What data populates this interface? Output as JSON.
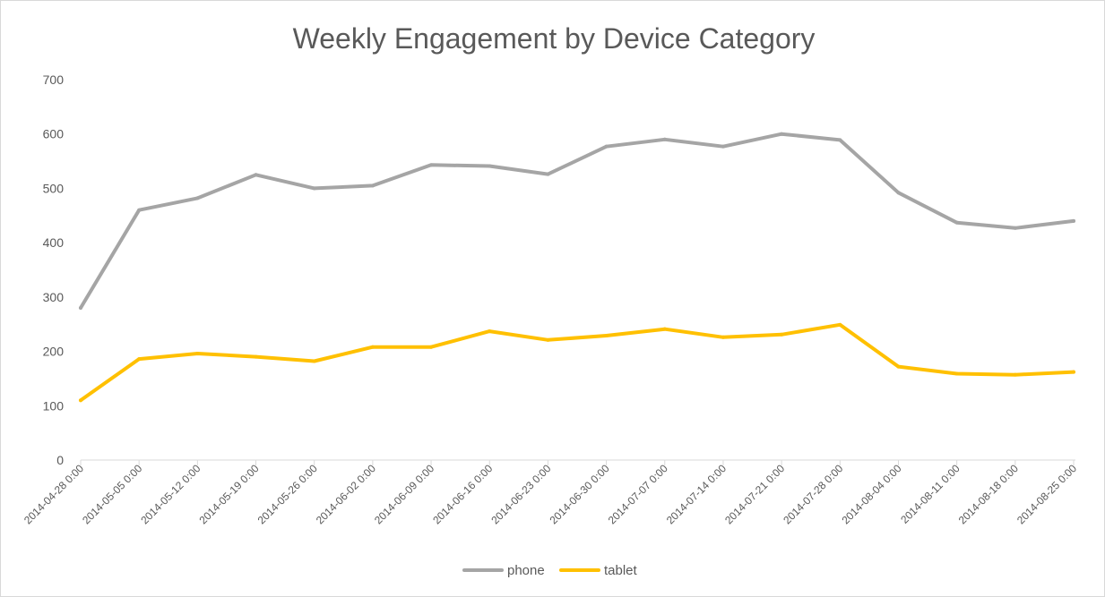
{
  "colors": {
    "phone": "#a5a5a5",
    "tablet": "#ffc000",
    "axis": "#d9d9d9",
    "text": "#595959"
  },
  "chart_data": {
    "type": "line",
    "title": "Weekly Engagement by Device Category",
    "xlabel": "",
    "ylabel": "",
    "ylim": [
      0,
      700
    ],
    "yticks": [
      0,
      100,
      200,
      300,
      400,
      500,
      600,
      700
    ],
    "grid": false,
    "legend_position": "bottom",
    "categories": [
      "2014-04-28 0:00",
      "2014-05-05 0:00",
      "2014-05-12 0:00",
      "2014-05-19 0:00",
      "2014-05-26 0:00",
      "2014-06-02 0:00",
      "2014-06-09 0:00",
      "2014-06-16 0:00",
      "2014-06-23 0:00",
      "2014-06-30 0:00",
      "2014-07-07 0:00",
      "2014-07-14 0:00",
      "2014-07-21 0:00",
      "2014-07-28 0:00",
      "2014-08-04 0:00",
      "2014-08-11 0:00",
      "2014-08-18 0:00",
      "2014-08-25 0:00"
    ],
    "series": [
      {
        "name": "phone",
        "color": "#a5a5a5",
        "values": [
          280,
          460,
          482,
          525,
          500,
          505,
          543,
          541,
          526,
          577,
          590,
          577,
          600,
          589,
          492,
          437,
          427,
          440
        ]
      },
      {
        "name": "tablet",
        "color": "#ffc000",
        "values": [
          110,
          186,
          196,
          190,
          182,
          208,
          208,
          237,
          221,
          229,
          241,
          226,
          231,
          249,
          172,
          159,
          157,
          162
        ]
      }
    ]
  }
}
